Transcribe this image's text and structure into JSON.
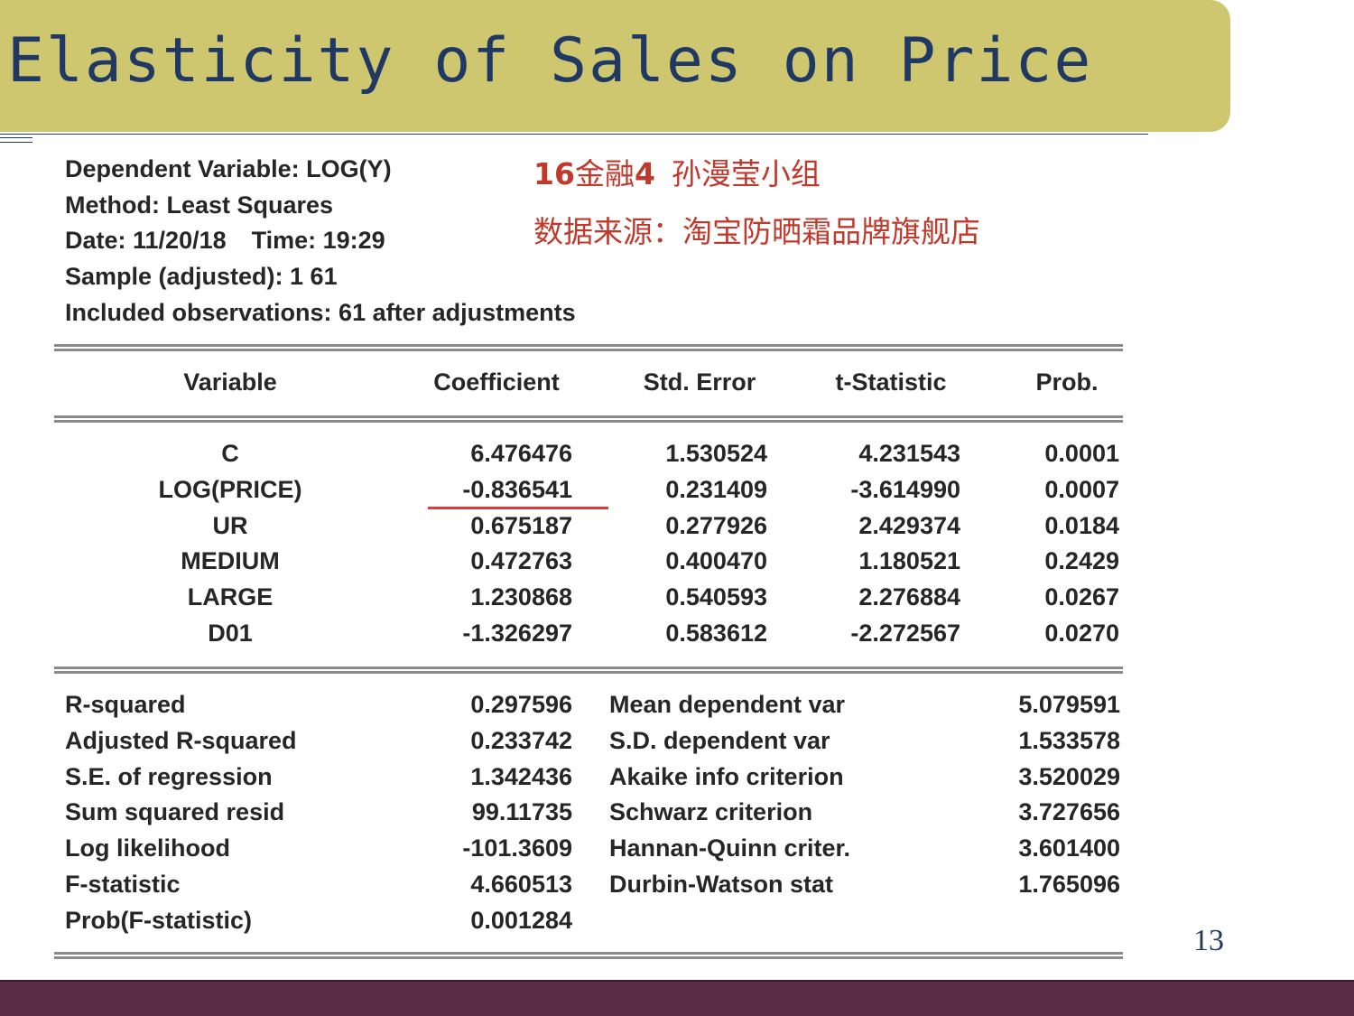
{
  "slide": {
    "title": "Elasticity of Sales on Price",
    "page_number": "13",
    "colors": {
      "title_bar": "#cec76f",
      "title_text": "#1f3864",
      "bottom_bar": "#5b2c48",
      "annotation": "#c0392b",
      "underline": "#e53935"
    }
  },
  "annotation": {
    "group_prefix": "16",
    "group_mid": "金融",
    "group_num": "4",
    "group_rest": "孙漫莹小组",
    "source": "数据来源：淘宝防晒霜品牌旗舰店"
  },
  "regression": {
    "dependent_variable": "Dependent Variable: LOG(Y)",
    "method": "Method: Least Squares",
    "date": "Date: 11/20/18",
    "time": "Time: 19:29",
    "sample": "Sample (adjusted): 1 61",
    "observations": "Included observations: 61 after adjustments",
    "headers": [
      "Variable",
      "Coefficient",
      "Std. Error",
      "t-Statistic",
      "Prob."
    ],
    "rows": [
      [
        "C",
        "6.476476",
        "1.530524",
        "4.231543",
        "0.0001"
      ],
      [
        "LOG(PRICE)",
        "-0.836541",
        "0.231409",
        "-3.614990",
        "0.0007"
      ],
      [
        "UR",
        "0.675187",
        "0.277926",
        "2.429374",
        "0.0184"
      ],
      [
        "MEDIUM",
        "0.472763",
        "0.400470",
        "1.180521",
        "0.2429"
      ],
      [
        "LARGE",
        "1.230868",
        "0.540593",
        "2.276884",
        "0.0267"
      ],
      [
        "D01",
        "-1.326297",
        "0.583612",
        "-2.272567",
        "0.0270"
      ]
    ],
    "stats_left": [
      [
        "R-squared",
        "0.297596"
      ],
      [
        "Adjusted R-squared",
        "0.233742"
      ],
      [
        "S.E. of regression",
        "1.342436"
      ],
      [
        "Sum squared resid",
        "99.11735"
      ],
      [
        "Log likelihood",
        "-101.3609"
      ],
      [
        "F-statistic",
        "4.660513"
      ],
      [
        "Prob(F-statistic)",
        "0.001284"
      ]
    ],
    "stats_right": [
      [
        "Mean dependent var",
        "5.079591"
      ],
      [
        "S.D. dependent var",
        "1.533578"
      ],
      [
        "Akaike info criterion",
        "3.520029"
      ],
      [
        "Schwarz criterion",
        "3.727656"
      ],
      [
        "Hannan-Quinn criter.",
        "3.601400"
      ],
      [
        "Durbin-Watson stat",
        "1.765096"
      ]
    ]
  }
}
